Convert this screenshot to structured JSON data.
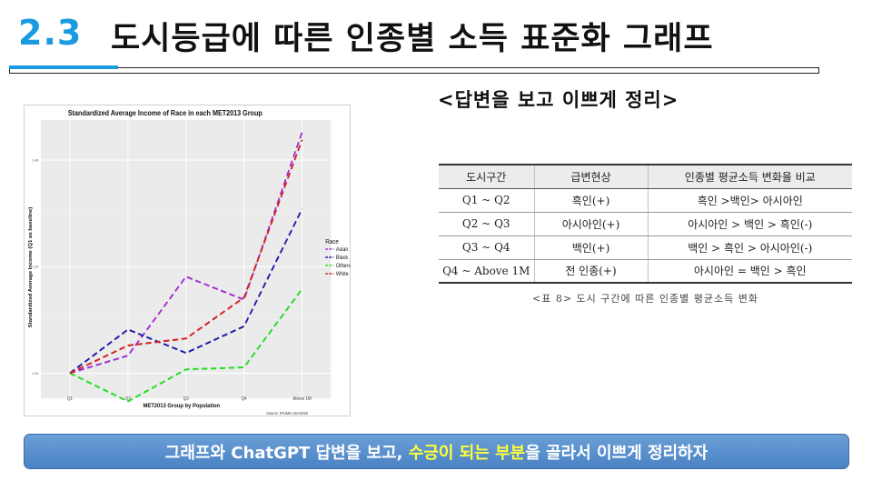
{
  "header": {
    "section_number": "2.3",
    "title": "도시등급에 따른 인종별 소득 표준화 그래프"
  },
  "subheading": "<답변을 보고 이쁘게 정리>",
  "chart_data": {
    "type": "line",
    "title": "Standardized Average Income of Race in each MET2013 Group",
    "xlabel": "MET2013 Group by Population",
    "ylabel": "Standardized Average Income (Q1 as baseline)",
    "categories": [
      "Q1",
      "Q2",
      "Q3",
      "Q4",
      "Above 1M"
    ],
    "y_ticks": [
      "1.00-",
      "1.20-",
      "1.40-"
    ],
    "ylim": [
      0.953,
      1.475
    ],
    "legend_title": "Race",
    "legend_position": "right",
    "grid": true,
    "source": "Source: IPUMS USA2022",
    "series": [
      {
        "name": "Asian",
        "color": "#a02ed8",
        "values": [
          1.0,
          1.033,
          1.181,
          1.138,
          1.452
        ]
      },
      {
        "name": "Black",
        "color": "#1a1aa8",
        "values": [
          1.0,
          1.082,
          1.038,
          1.088,
          1.308
        ]
      },
      {
        "name": "Others",
        "color": "#22dd22",
        "values": [
          1.0,
          0.947,
          1.007,
          1.011,
          1.158
        ]
      },
      {
        "name": "White",
        "color": "#d22020",
        "values": [
          1.0,
          1.052,
          1.065,
          1.142,
          1.438
        ]
      }
    ]
  },
  "table": {
    "headers": [
      "도시구간",
      "급변현상",
      "인종별 평균소득 변화율 비교"
    ],
    "rows": [
      [
        "Q1 ~ Q2",
        "흑인(+)",
        "흑인 >백인> 아시아인"
      ],
      [
        "Q2 ~ Q3",
        "아시아인(+)",
        "아시아인 > 백인 > 흑인(-)"
      ],
      [
        "Q3 ~ Q4",
        "백인(+)",
        "백인 > 흑인 > 아시아인(-)"
      ],
      [
        "Q4 ~ Above 1M",
        "전 인종(+)",
        "아시아인 = 백인 > 흑인"
      ]
    ],
    "caption": "<표 8> 도시 구간에 따른 인종별 평균소득 변화"
  },
  "banner": {
    "part1": "그래프와 ChatGPT 답변을 보고, ",
    "highlight1": "수긍이 되는 부분",
    "part2": "을 골라서 이쁘게 정리하자"
  },
  "colors": {
    "accent": "#1a9be0",
    "banner_bg": "#5a8fcf",
    "highlight": "#ffff3b"
  }
}
